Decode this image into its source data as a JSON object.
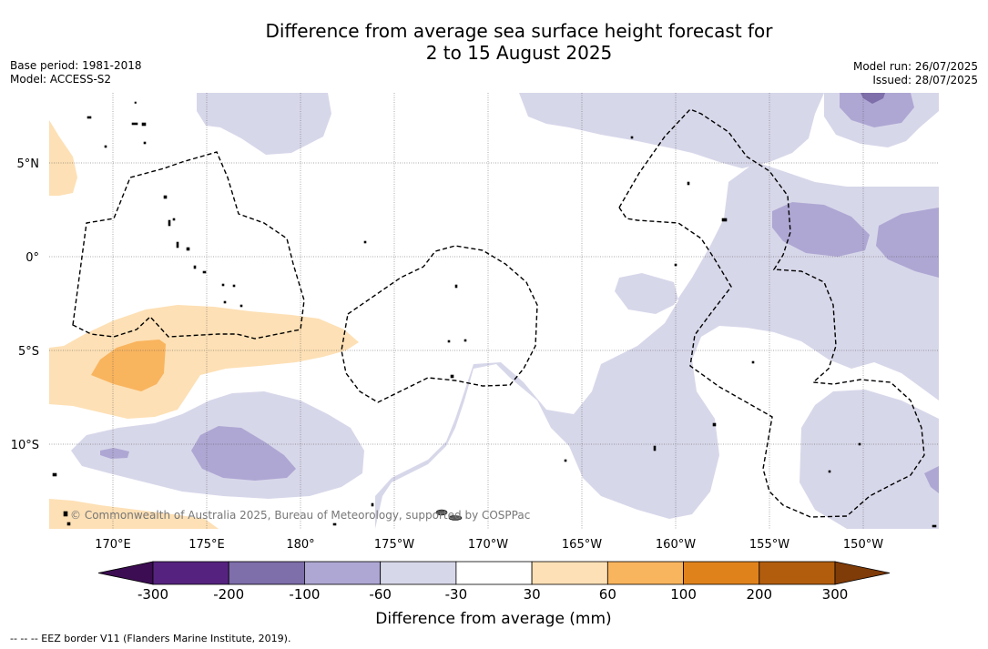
{
  "header": {
    "title_line1": "Difference from average sea surface height forecast for",
    "title_line2": "2 to 15 August 2025",
    "base_period": "Base period: 1981-2018",
    "model": "Model: ACCESS-S2",
    "model_run": "Model run: 26/07/2025",
    "issued": "Issued: 28/07/2025"
  },
  "map": {
    "lon_labels": [
      "170°E",
      "175°E",
      "180°",
      "175°W",
      "170°W",
      "165°W",
      "160°W",
      "155°W",
      "150°W"
    ],
    "lat_labels": [
      "5°N",
      "0°",
      "5°S",
      "10°S"
    ],
    "copyright": "© Commonwealth of Australia 2025, Bureau of Meteorology, supported by COSPPac"
  },
  "colorbar": {
    "ticks": [
      "-300",
      "-200",
      "-100",
      "-60",
      "-30",
      "30",
      "60",
      "100",
      "200",
      "300"
    ],
    "colors": [
      "#3c0d52",
      "#55237f",
      "#7e6eaa",
      "#aea7d3",
      "#d7d7ea",
      "#ffffff",
      "#fde0b5",
      "#f9b45e",
      "#e0821c",
      "#b25d0e",
      "#7f3b08"
    ],
    "label": "Difference from average (mm)"
  },
  "legend": {
    "eez_text": "-- -- -- EEZ border V11 (Flanders Marine Institute, 2019)."
  },
  "colors": {
    "light_purple": "#d7d7ea",
    "mid_purple": "#aea7d3",
    "dark_purple": "#7e6eaa",
    "light_orange": "#fde0b5",
    "mid_orange": "#f9b45e"
  }
}
